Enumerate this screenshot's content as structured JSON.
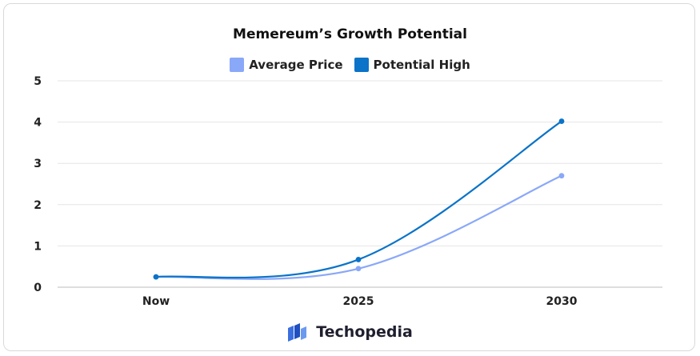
{
  "chart_data": {
    "type": "line",
    "title": "Memereum’s Growth Potential",
    "categories": [
      "Now",
      "2025",
      "2030"
    ],
    "series": [
      {
        "name": "Average Price",
        "values": [
          0.25,
          0.45,
          2.7
        ],
        "color": "#8aa8f8"
      },
      {
        "name": "Potential High",
        "values": [
          0.25,
          0.67,
          4.02
        ],
        "color": "#0b73c8"
      }
    ],
    "ylim": [
      0,
      5
    ],
    "yticks": [
      "0",
      "1",
      "2",
      "3",
      "4",
      "5"
    ],
    "grid": true,
    "legend_position": "top-center"
  },
  "brand": {
    "name": "Techopedia",
    "logo_icon": "techopedia-logo-icon"
  }
}
